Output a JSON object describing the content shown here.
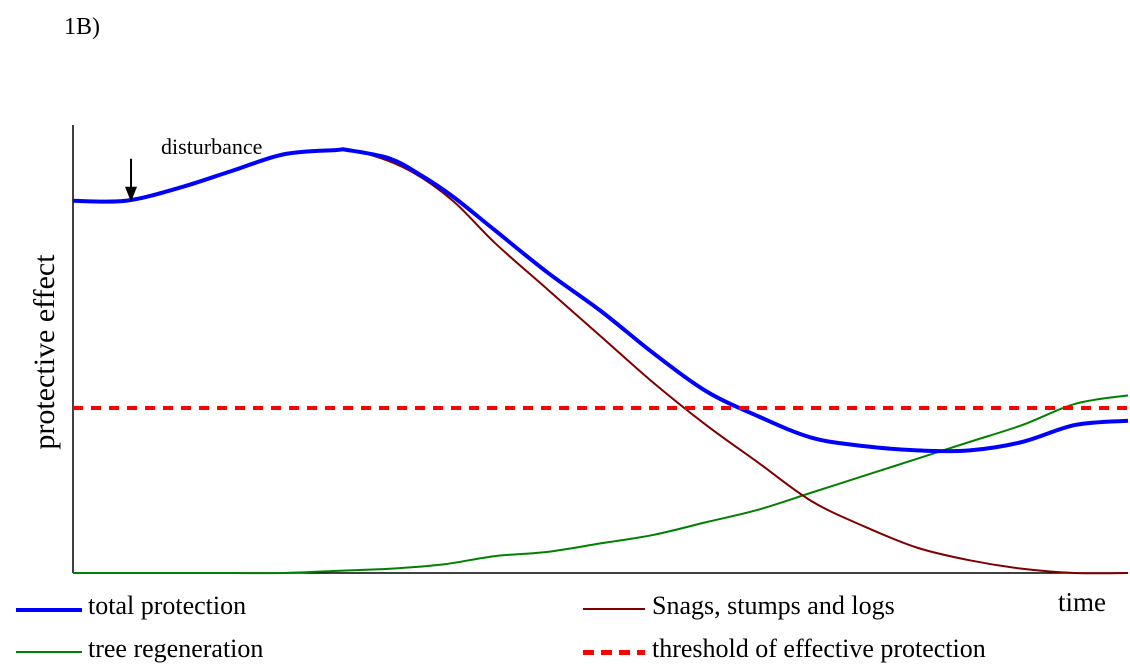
{
  "panel_label": "1B)",
  "chart_data": {
    "type": "line",
    "title": "",
    "xlabel": "time",
    "ylabel": "protective effect",
    "xlim": [
      0,
      100
    ],
    "ylim": [
      0,
      100
    ],
    "grid": false,
    "axis_ticks": false,
    "series": [
      {
        "name": "total protection",
        "color": "#0000ff",
        "x": [
          0,
          5,
          10,
          15,
          20,
          25,
          26,
          30,
          33,
          36,
          40,
          45,
          50,
          55,
          60,
          65,
          70,
          75,
          80,
          85,
          90,
          95,
          100
        ],
        "y": [
          88,
          88,
          91,
          95,
          99,
          100,
          100,
          98,
          94,
          89,
          81,
          71,
          62,
          52,
          43,
          37,
          32,
          30,
          29,
          29,
          31,
          35,
          36
        ]
      },
      {
        "name": "Snags, stumps and logs",
        "color": "#800000",
        "x": [
          0,
          5,
          10,
          15,
          20,
          25,
          28,
          32,
          36,
          40,
          45,
          50,
          55,
          60,
          65,
          70,
          75,
          80,
          85,
          90,
          95,
          100
        ],
        "y": [
          88,
          88,
          91,
          95,
          99,
          100,
          99,
          95,
          88,
          78,
          67,
          56,
          45,
          35,
          26,
          17,
          11,
          6,
          3,
          1,
          0,
          0
        ]
      },
      {
        "name": "tree regeneration",
        "color": "#008000",
        "x": [
          0,
          5,
          10,
          15,
          20,
          25,
          30,
          35,
          40,
          45,
          50,
          55,
          60,
          65,
          70,
          75,
          80,
          85,
          90,
          95,
          100
        ],
        "y": [
          0,
          0,
          0,
          0,
          0,
          0.5,
          1,
          2,
          4,
          5,
          7,
          9,
          12,
          15,
          19,
          23,
          27,
          31,
          35,
          40,
          42
        ]
      },
      {
        "name": "threshold of effective protection",
        "color": "#ff0000",
        "style": "dashed",
        "x": [
          0,
          100
        ],
        "y": [
          39,
          39
        ]
      }
    ],
    "annotations": [
      {
        "text": "disturbance",
        "x": 5.5,
        "y": 88,
        "arrow": "down"
      }
    ],
    "legend": {
      "position": "bottom",
      "items": [
        {
          "label": "total protection",
          "color": "#0000ff",
          "style": "solid-thick"
        },
        {
          "label": "Snags, stumps and logs",
          "color": "#800000",
          "style": "solid"
        },
        {
          "label": "tree regeneration",
          "color": "#008000",
          "style": "solid"
        },
        {
          "label": "threshold of effective protection",
          "color": "#ff0000",
          "style": "dashed"
        }
      ]
    }
  }
}
